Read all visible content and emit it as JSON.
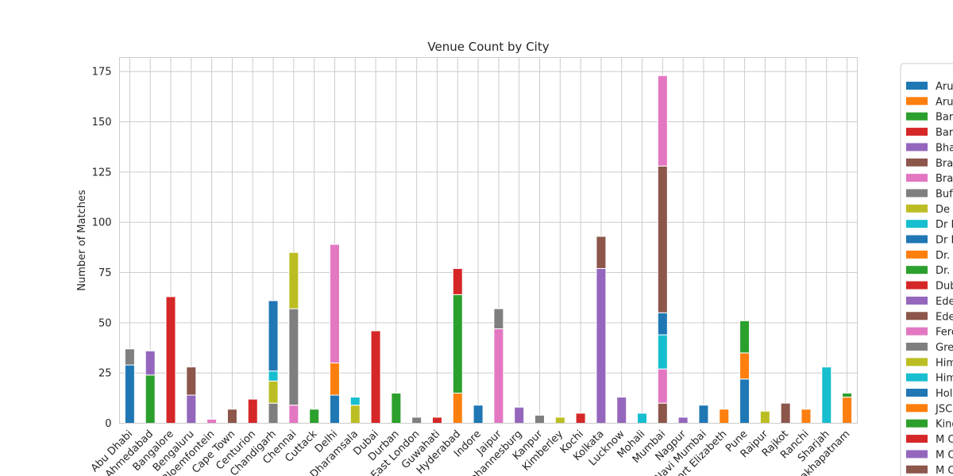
{
  "chart_data": {
    "type": "bar",
    "stacked": true,
    "title": "Venue Count by City",
    "xlabel": "",
    "ylabel": "Number of Matches",
    "ylim": [
      0,
      182
    ],
    "yticks": [
      0,
      25,
      50,
      75,
      100,
      125,
      150,
      175
    ],
    "grid": true,
    "legend_position": "right",
    "categories": [
      "Abu Dhabi",
      "Ahmedabad",
      "Bangalore",
      "Bengaluru",
      "Bloemfontein",
      "Cape Town",
      "Centurion",
      "Chandigarh",
      "Chennai",
      "Cuttack",
      "Delhi",
      "Dharamsala",
      "Dubai",
      "Durban",
      "East London",
      "Guwahati",
      "Hyderabad",
      "Indore",
      "Jaipur",
      "Johannesburg",
      "Kanpur",
      "Kimberley",
      "Kochi",
      "Kolkata",
      "Lucknow",
      "Mohali",
      "Mumbai",
      "Nagpur",
      "Navi Mumbai",
      "Port Elizabeth",
      "Pune",
      "Raipur",
      "Rajkot",
      "Ranchi",
      "Sharjah",
      "Visakhapatnam"
    ],
    "colors": [
      "#1f77b4",
      "#ff7f0e",
      "#2ca02c",
      "#d62728",
      "#9467bd",
      "#8c564b",
      "#e377c2",
      "#7f7f7f",
      "#bcbd22",
      "#17becf"
    ],
    "legend_entries": [
      "Aru",
      "Aru",
      "Bar",
      "Bar",
      "Bha",
      "Bra",
      "Bra",
      "Buf",
      "De",
      "Dr D",
      "Dr D",
      "Dr.",
      "Dr.",
      "Dub",
      "Ede",
      "Ede",
      "Fero",
      "Gre",
      "Him",
      "Him",
      "Holl",
      "JSC",
      "King",
      "M C",
      "M C",
      "M C"
    ],
    "segments": [
      {
        "city": "Abu Dhabi",
        "series": 0,
        "value": 29
      },
      {
        "city": "Abu Dhabi",
        "series": 17,
        "value": 8
      },
      {
        "city": "Ahmedabad",
        "series": 2,
        "value": 24
      },
      {
        "city": "Ahmedabad",
        "series": 4,
        "value": 12
      },
      {
        "city": "Bangalore",
        "series": 3,
        "value": 63
      },
      {
        "city": "Bengaluru",
        "series": 4,
        "value": 14
      },
      {
        "city": "Bengaluru",
        "series": 5,
        "value": 14
      },
      {
        "city": "Bloemfontein",
        "series": 6,
        "value": 2
      },
      {
        "city": "Cape Town",
        "series": 5,
        "value": 7
      },
      {
        "city": "Centurion",
        "series": 3,
        "value": 12
      },
      {
        "city": "Chandigarh",
        "series": 7,
        "value": 10
      },
      {
        "city": "Chandigarh",
        "series": 8,
        "value": 11
      },
      {
        "city": "Chandigarh",
        "series": 9,
        "value": 5
      },
      {
        "city": "Chandigarh",
        "series": 0,
        "value": 35
      },
      {
        "city": "Chennai",
        "series": 6,
        "value": 9
      },
      {
        "city": "Chennai",
        "series": 7,
        "value": 48
      },
      {
        "city": "Chennai",
        "series": 8,
        "value": 28
      },
      {
        "city": "Cuttack",
        "series": 2,
        "value": 7
      },
      {
        "city": "Delhi",
        "series": 0,
        "value": 14
      },
      {
        "city": "Delhi",
        "series": 1,
        "value": 16
      },
      {
        "city": "Delhi",
        "series": 6,
        "value": 59
      },
      {
        "city": "Dharamsala",
        "series": 8,
        "value": 9
      },
      {
        "city": "Dharamsala",
        "series": 9,
        "value": 4
      },
      {
        "city": "Dubai",
        "series": 3,
        "value": 46
      },
      {
        "city": "Durban",
        "series": 2,
        "value": 15
      },
      {
        "city": "East London",
        "series": 7,
        "value": 3
      },
      {
        "city": "Guwahati",
        "series": 3,
        "value": 3
      },
      {
        "city": "Hyderabad",
        "series": 1,
        "value": 15
      },
      {
        "city": "Hyderabad",
        "series": 2,
        "value": 49
      },
      {
        "city": "Hyderabad",
        "series": 3,
        "value": 13
      },
      {
        "city": "Indore",
        "series": 0,
        "value": 9
      },
      {
        "city": "Jaipur",
        "series": 6,
        "value": 47
      },
      {
        "city": "Jaipur",
        "series": 7,
        "value": 10
      },
      {
        "city": "Johannesburg",
        "series": 4,
        "value": 8
      },
      {
        "city": "Kanpur",
        "series": 7,
        "value": 4
      },
      {
        "city": "Kimberley",
        "series": 8,
        "value": 3
      },
      {
        "city": "Kochi",
        "series": 3,
        "value": 5
      },
      {
        "city": "Kolkata",
        "series": 4,
        "value": 77
      },
      {
        "city": "Kolkata",
        "series": 5,
        "value": 16
      },
      {
        "city": "Lucknow",
        "series": 4,
        "value": 13
      },
      {
        "city": "Mohali",
        "series": 9,
        "value": 5
      },
      {
        "city": "Mumbai",
        "series": 5,
        "value": 10
      },
      {
        "city": "Mumbai",
        "series": 6,
        "value": 17
      },
      {
        "city": "Mumbai",
        "series": 9,
        "value": 17
      },
      {
        "city": "Mumbai",
        "series": 0,
        "value": 11
      },
      {
        "city": "Mumbai",
        "series": 5,
        "value": 73
      },
      {
        "city": "Mumbai",
        "series": 6,
        "value": 45
      },
      {
        "city": "Nagpur",
        "series": 4,
        "value": 3
      },
      {
        "city": "Navi Mumbai",
        "series": 0,
        "value": 9
      },
      {
        "city": "Port Elizabeth",
        "series": 1,
        "value": 7
      },
      {
        "city": "Pune",
        "series": 0,
        "value": 22
      },
      {
        "city": "Pune",
        "series": 1,
        "value": 13
      },
      {
        "city": "Pune",
        "series": 2,
        "value": 16
      },
      {
        "city": "Raipur",
        "series": 8,
        "value": 6
      },
      {
        "city": "Rajkot",
        "series": 5,
        "value": 10
      },
      {
        "city": "Ranchi",
        "series": 1,
        "value": 7
      },
      {
        "city": "Sharjah",
        "series": 9,
        "value": 28
      },
      {
        "city": "Visakhapatnam",
        "series": 1,
        "value": 13
      },
      {
        "city": "Visakhapatnam",
        "series": 2,
        "value": 2
      }
    ]
  }
}
